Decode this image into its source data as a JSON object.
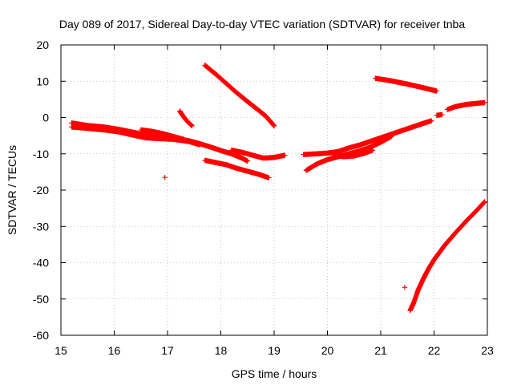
{
  "chart_data": {
    "type": "scatter",
    "title": "Day 089 of 2017, Sidereal Day-to-day VTEC variation (SDTVAR) for receiver tnba",
    "xlabel": "GPS time / hours",
    "ylabel": "SDTVAR / TECUs",
    "xlim": [
      15,
      23
    ],
    "ylim": [
      -60,
      20
    ],
    "xticks": [
      "15",
      "16",
      "17",
      "18",
      "19",
      "20",
      "21",
      "22",
      "23"
    ],
    "yticks": [
      "20",
      "10",
      "0",
      "-10",
      "-20",
      "-30",
      "-40",
      "-50",
      "-60"
    ],
    "grid": true,
    "marker": "+",
    "color": "#ff0000",
    "series": [
      {
        "points": [
          [
            15.2,
            -1.5
          ],
          [
            15.5,
            -2.2
          ],
          [
            15.8,
            -2.6
          ],
          [
            16.1,
            -3.3
          ],
          [
            16.4,
            -4.2
          ],
          [
            16.6,
            -4.8
          ],
          [
            16.8,
            -5.1
          ],
          [
            17.1,
            -5.6
          ],
          [
            17.4,
            -6.4
          ],
          [
            17.6,
            -7.2
          ],
          [
            17.8,
            -8.1
          ],
          [
            18.0,
            -9.1
          ],
          [
            18.2,
            -10.0
          ],
          [
            18.4,
            -11.2
          ],
          [
            18.5,
            -12.0
          ]
        ]
      },
      {
        "points": [
          [
            15.2,
            -2.6
          ],
          [
            15.5,
            -3.0
          ],
          [
            15.8,
            -3.4
          ],
          [
            16.1,
            -4.0
          ],
          [
            16.4,
            -5.0
          ],
          [
            16.6,
            -5.6
          ],
          [
            16.8,
            -5.8
          ],
          [
            17.1,
            -6.0
          ],
          [
            17.4,
            -6.6
          ],
          [
            17.6,
            -7.5
          ]
        ]
      },
      {
        "points": [
          [
            16.5,
            -3.4
          ],
          [
            16.7,
            -3.8
          ],
          [
            16.9,
            -4.4
          ],
          [
            17.1,
            -5.2
          ],
          [
            17.3,
            -6.0
          ]
        ]
      },
      {
        "points": [
          [
            17.7,
            14.4
          ],
          [
            17.9,
            12.0
          ],
          [
            18.1,
            9.4
          ],
          [
            18.3,
            6.8
          ],
          [
            18.5,
            4.4
          ],
          [
            18.7,
            2.1
          ],
          [
            18.85,
            0.3
          ],
          [
            19.0,
            -2.3
          ]
        ]
      },
      {
        "points": [
          [
            17.23,
            1.8
          ],
          [
            17.3,
            0.2
          ],
          [
            17.38,
            -1.2
          ],
          [
            17.46,
            -2.3
          ]
        ]
      },
      {
        "points": [
          [
            17.7,
            -11.8
          ],
          [
            17.9,
            -12.4
          ],
          [
            18.1,
            -13.0
          ],
          [
            18.3,
            -14.0
          ],
          [
            18.5,
            -14.8
          ],
          [
            18.7,
            -15.6
          ],
          [
            18.9,
            -16.6
          ]
        ]
      },
      {
        "points": [
          [
            18.2,
            -9.0
          ],
          [
            18.4,
            -9.6
          ],
          [
            18.6,
            -10.4
          ],
          [
            18.8,
            -11.2
          ],
          [
            19.0,
            -11.0
          ],
          [
            19.2,
            -10.4
          ]
        ]
      },
      {
        "points": [
          [
            19.55,
            -10.2
          ],
          [
            19.8,
            -10.0
          ],
          [
            20.0,
            -9.8
          ],
          [
            20.2,
            -9.4
          ],
          [
            20.4,
            -8.4
          ],
          [
            20.6,
            -7.6
          ],
          [
            20.8,
            -6.6
          ],
          [
            21.0,
            -5.6
          ],
          [
            21.2,
            -4.6
          ],
          [
            21.4,
            -3.6
          ],
          [
            21.6,
            -2.6
          ],
          [
            21.8,
            -1.6
          ],
          [
            21.95,
            -0.9
          ]
        ]
      },
      {
        "points": [
          [
            19.6,
            -14.6
          ],
          [
            19.8,
            -12.8
          ],
          [
            20.0,
            -11.6
          ],
          [
            20.2,
            -10.8
          ],
          [
            20.4,
            -10.0
          ],
          [
            20.6,
            -9.2
          ],
          [
            20.8,
            -8.2
          ],
          [
            21.0,
            -6.8
          ],
          [
            21.2,
            -5.2
          ]
        ]
      },
      {
        "points": [
          [
            20.1,
            -10.2
          ],
          [
            20.3,
            -10.8
          ],
          [
            20.5,
            -10.6
          ],
          [
            20.7,
            -9.8
          ],
          [
            20.85,
            -9.0
          ]
        ]
      },
      {
        "points": [
          [
            20.9,
            10.8
          ],
          [
            21.2,
            10.1
          ],
          [
            21.5,
            9.2
          ],
          [
            21.8,
            8.2
          ],
          [
            22.05,
            7.3
          ]
        ]
      },
      {
        "points": [
          [
            22.05,
            0.6
          ],
          [
            22.15,
            0.8
          ]
        ]
      },
      {
        "points": [
          [
            22.25,
            2.2
          ],
          [
            22.4,
            3.0
          ],
          [
            22.6,
            3.6
          ],
          [
            22.8,
            3.9
          ],
          [
            22.95,
            4.1
          ]
        ]
      },
      {
        "points": [
          [
            21.55,
            -53.2
          ],
          [
            21.62,
            -51.0
          ],
          [
            21.7,
            -47.6
          ],
          [
            21.8,
            -44.4
          ],
          [
            21.9,
            -41.6
          ],
          [
            22.0,
            -39.2
          ],
          [
            22.2,
            -35.2
          ],
          [
            22.4,
            -31.8
          ],
          [
            22.6,
            -28.6
          ],
          [
            22.8,
            -25.6
          ],
          [
            22.95,
            -23.2
          ]
        ]
      },
      {
        "points": [
          [
            16.95,
            -16.5
          ],
          [
            21.45,
            -46.8
          ]
        ]
      }
    ]
  }
}
